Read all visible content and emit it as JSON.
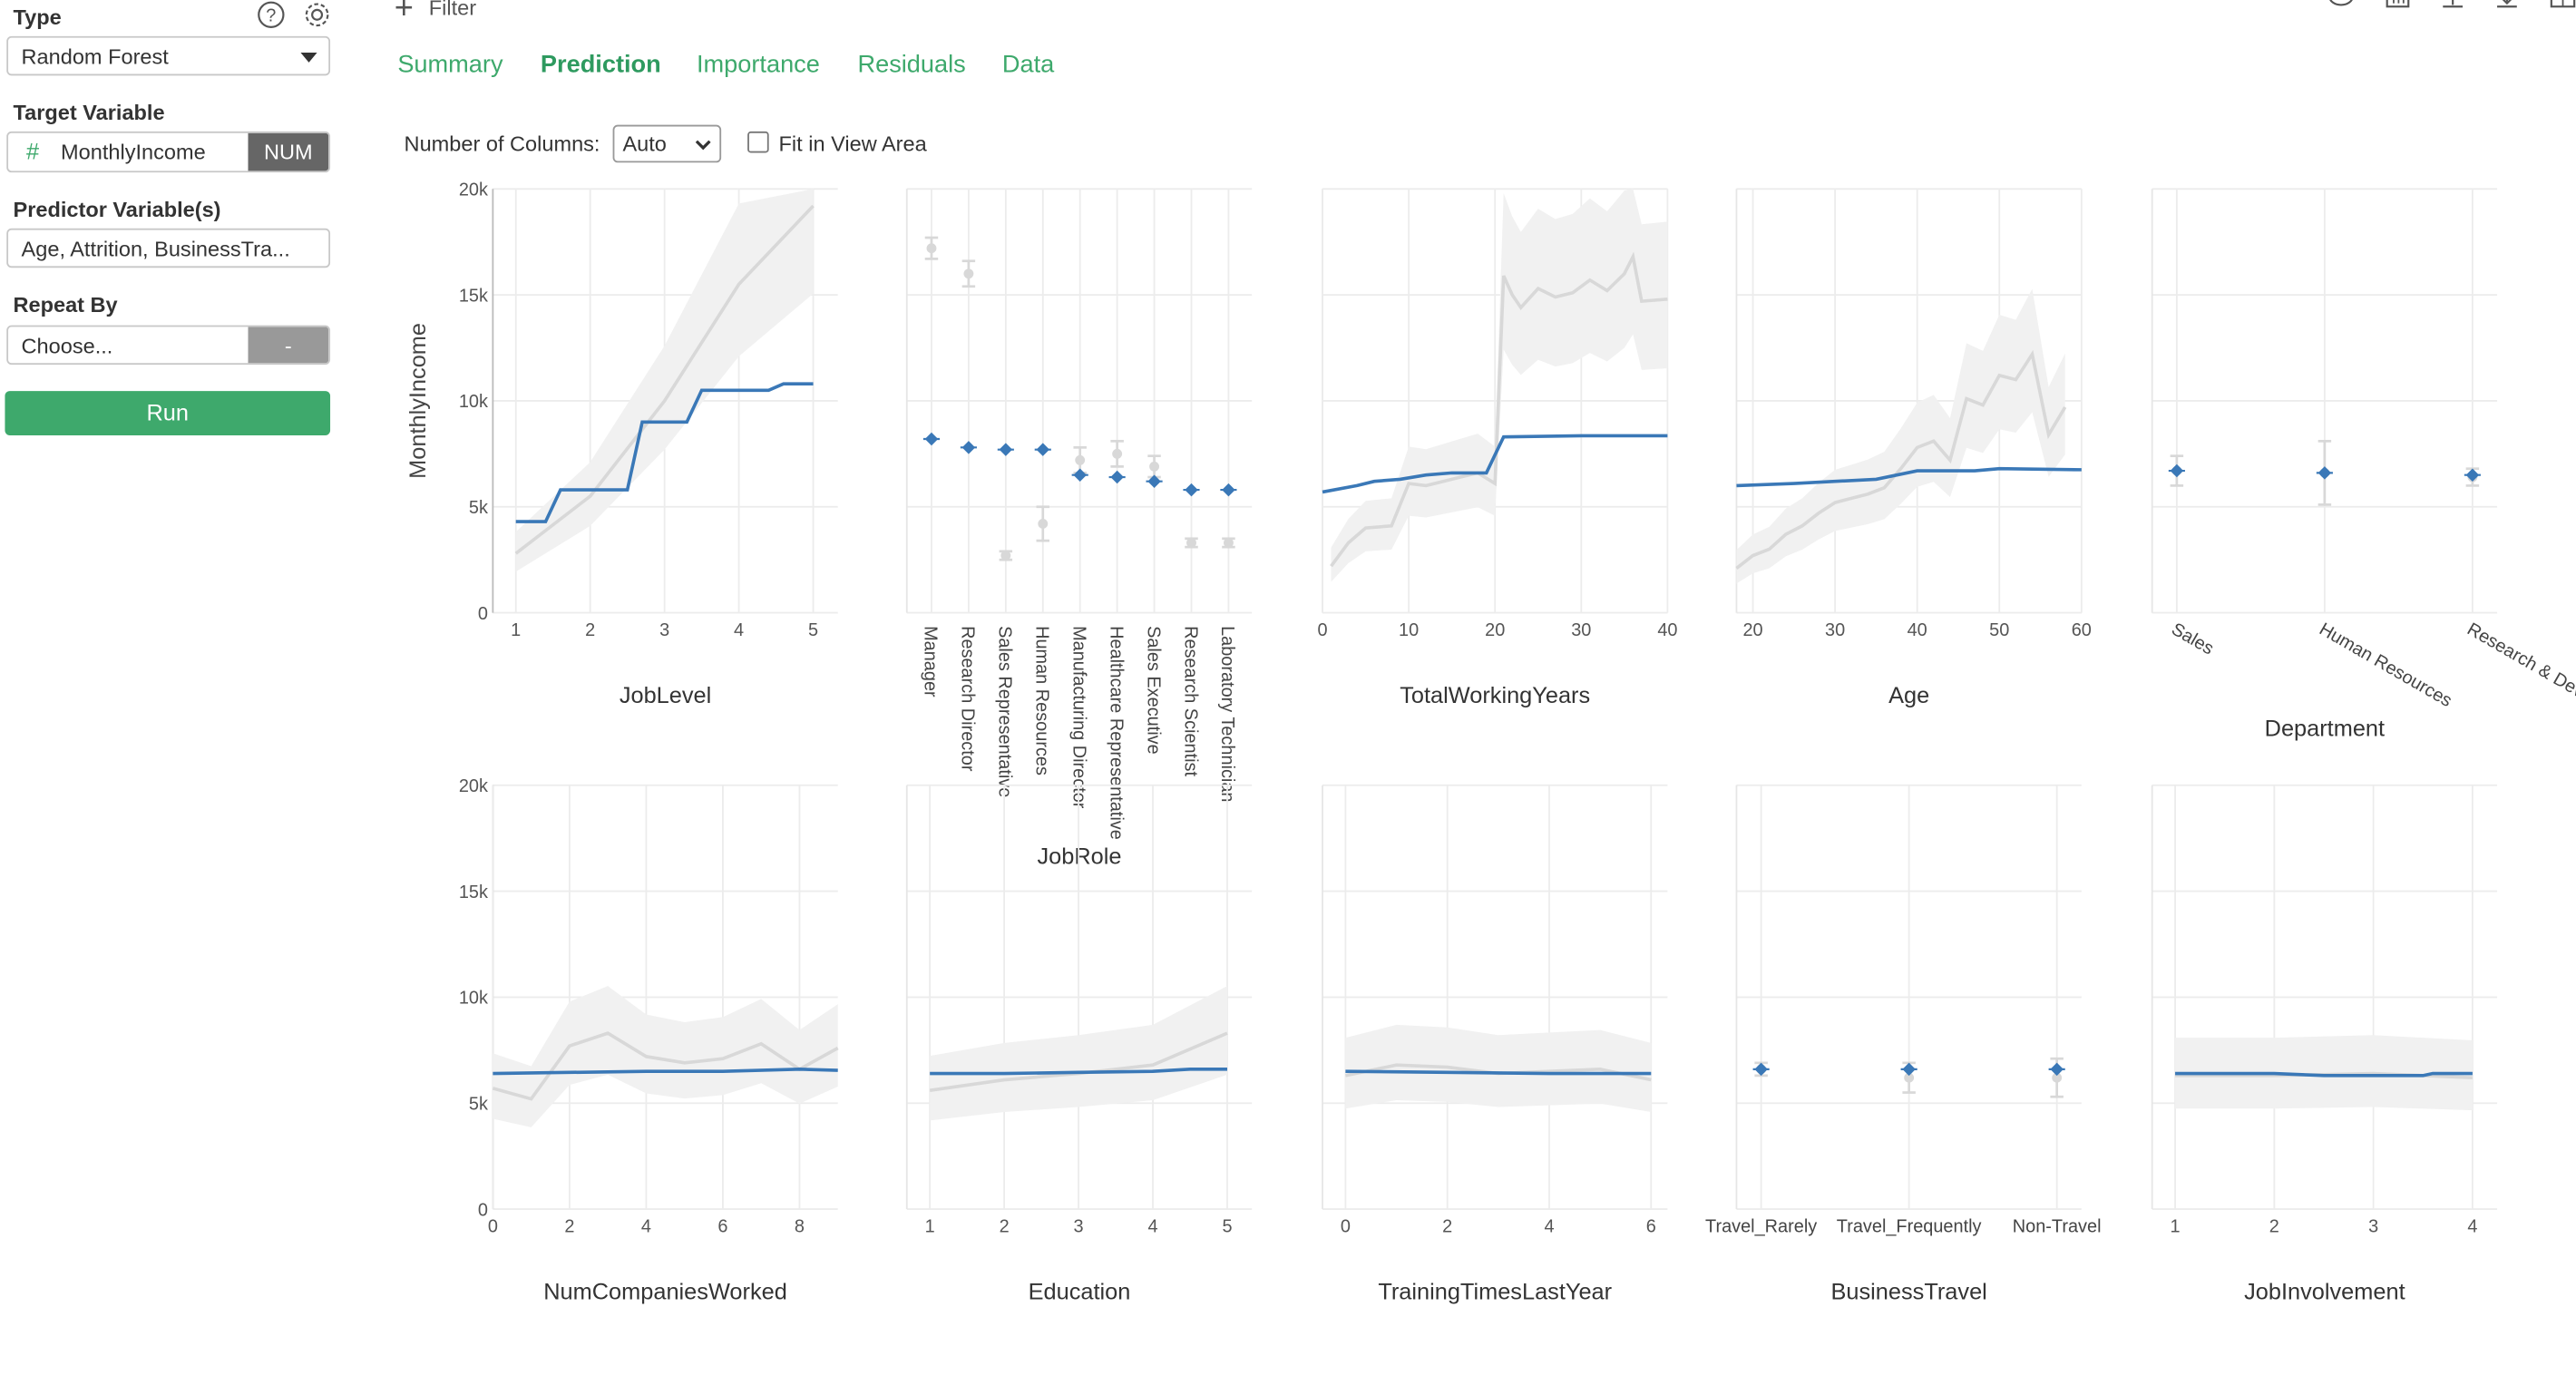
{
  "sidebar": {
    "type_label": "Type",
    "type_value": "Random Forest",
    "target_label": "Target Variable",
    "target_value": "MonthlyIncome",
    "target_type": "NUM",
    "predictor_label": "Predictor Variable(s)",
    "predictor_value": "Age, Attrition, BusinessTra...",
    "repeat_label": "Repeat By",
    "repeat_value": "Choose...",
    "repeat_btn": "-",
    "run_label": "Run"
  },
  "toolbar": {
    "filter_label": "Filter"
  },
  "tabs": [
    {
      "label": "Summary",
      "active": false
    },
    {
      "label": "Prediction",
      "active": true
    },
    {
      "label": "Importance",
      "active": false
    },
    {
      "label": "Residuals",
      "active": false
    },
    {
      "label": "Data",
      "active": false
    }
  ],
  "controls": {
    "columns_label": "Number of Columns:",
    "columns_value": "Auto",
    "fit_label": "Fit in View Area",
    "fit_checked": false
  },
  "colors": {
    "prediction": "#3a78b7",
    "actual": "#d8d8d8",
    "band": "#f1f1f1",
    "accent": "#3ea96c"
  },
  "chart_data": [
    {
      "type": "line",
      "xlabel": "JobLevel",
      "ylabel": "MonthlyIncome",
      "ylim": [
        0,
        20000
      ],
      "xlim": [
        1,
        5
      ],
      "x_ticks": [
        1,
        2,
        3,
        4,
        5
      ],
      "y_ticks": [
        "0",
        "5k",
        "10k",
        "15k",
        "20k"
      ],
      "series": [
        {
          "values": [
            [
              1,
              4300
            ],
            [
              1.4,
              4300
            ],
            [
              1.6,
              5800
            ],
            [
              2.5,
              5800
            ],
            [
              2.7,
              9000
            ],
            [
              3.3,
              9000
            ],
            [
              3.5,
              10500
            ],
            [
              4.4,
              10500
            ],
            [
              4.6,
              10800
            ],
            [
              5,
              10800
            ]
          ]
        },
        {
          "values": [
            [
              1,
              2800
            ],
            [
              2,
              5500
            ],
            [
              3,
              10000
            ],
            [
              4,
              15500
            ],
            [
              5,
              19200
            ]
          ]
        }
      ]
    },
    {
      "type": "scatter",
      "xlabel": "JobRole",
      "ylim": [
        0,
        20000
      ],
      "categories": [
        "Manager",
        "Research Director",
        "Sales Representative",
        "Human Resources",
        "Manufacturing Director",
        "Healthcare Representative",
        "Sales Executive",
        "Research Scientist",
        "Laboratory Technician"
      ],
      "prediction": [
        8200,
        7800,
        7700,
        7700,
        6500,
        6400,
        6200,
        5800,
        5800
      ],
      "actual": [
        17200,
        16000,
        2700,
        4200,
        7200,
        7500,
        6900,
        3300,
        3300
      ],
      "actual_err": [
        500,
        600,
        200,
        800,
        600,
        600,
        500,
        200,
        200
      ]
    },
    {
      "type": "line",
      "xlabel": "TotalWorkingYears",
      "ylim": [
        0,
        20000
      ],
      "xlim": [
        0,
        40
      ],
      "x_ticks": [
        0,
        10,
        20,
        30,
        40
      ],
      "series": [
        {
          "values": [
            [
              0,
              5700
            ],
            [
              4,
              6000
            ],
            [
              6,
              6200
            ],
            [
              9,
              6300
            ],
            [
              12,
              6500
            ],
            [
              15,
              6600
            ],
            [
              19,
              6600
            ],
            [
              21,
              8300
            ],
            [
              30,
              8350
            ],
            [
              40,
              8350
            ]
          ]
        },
        {
          "values": [
            [
              1,
              2200
            ],
            [
              3,
              3300
            ],
            [
              5,
              4000
            ],
            [
              8,
              4100
            ],
            [
              10,
              6100
            ],
            [
              12,
              6000
            ],
            [
              14,
              6200
            ],
            [
              16,
              6400
            ],
            [
              18,
              6600
            ],
            [
              20,
              6100
            ],
            [
              21,
              15900
            ],
            [
              22,
              15000
            ],
            [
              23,
              14400
            ],
            [
              25,
              15300
            ],
            [
              27,
              14900
            ],
            [
              29,
              15100
            ],
            [
              31,
              15700
            ],
            [
              33,
              15200
            ],
            [
              35,
              16000
            ],
            [
              36,
              16800
            ],
            [
              37,
              14700
            ],
            [
              40,
              14800
            ]
          ]
        }
      ]
    },
    {
      "type": "line",
      "xlabel": "Age",
      "ylim": [
        0,
        20000
      ],
      "xlim": [
        18,
        60
      ],
      "x_ticks": [
        20,
        30,
        40,
        50,
        60
      ],
      "series": [
        {
          "values": [
            [
              18,
              6000
            ],
            [
              25,
              6100
            ],
            [
              30,
              6200
            ],
            [
              35,
              6300
            ],
            [
              40,
              6700
            ],
            [
              47,
              6700
            ],
            [
              50,
              6800
            ],
            [
              60,
              6750
            ]
          ]
        },
        {
          "values": [
            [
              18,
              2100
            ],
            [
              20,
              2700
            ],
            [
              22,
              3000
            ],
            [
              24,
              3700
            ],
            [
              26,
              4100
            ],
            [
              28,
              4700
            ],
            [
              30,
              5200
            ],
            [
              32,
              5400
            ],
            [
              34,
              5600
            ],
            [
              36,
              5900
            ],
            [
              38,
              6800
            ],
            [
              40,
              7800
            ],
            [
              42,
              8100
            ],
            [
              44,
              7200
            ],
            [
              46,
              10100
            ],
            [
              48,
              9800
            ],
            [
              50,
              11200
            ],
            [
              52,
              11000
            ],
            [
              54,
              12200
            ],
            [
              56,
              8400
            ],
            [
              58,
              9700
            ]
          ]
        }
      ]
    },
    {
      "type": "scatter",
      "xlabel": "Department",
      "ylim": [
        0,
        20000
      ],
      "categories": [
        "Sales",
        "Human Resources",
        "Research & Development"
      ],
      "prediction": [
        6700,
        6600,
        6500
      ],
      "actual": [
        6700,
        6600,
        6400
      ],
      "actual_err": [
        700,
        1500,
        400
      ]
    },
    {
      "type": "line",
      "xlabel": "NumCompaniesWorked",
      "ylabel": "",
      "ylim": [
        0,
        20000
      ],
      "xlim": [
        0,
        9
      ],
      "x_ticks": [
        0,
        2,
        4,
        6,
        8
      ],
      "y_ticks": [
        "0",
        "5k",
        "10k",
        "15k",
        "20k"
      ],
      "series": [
        {
          "values": [
            [
              0,
              6400
            ],
            [
              2,
              6450
            ],
            [
              4,
              6500
            ],
            [
              6,
              6500
            ],
            [
              8,
              6600
            ],
            [
              9,
              6550
            ]
          ]
        },
        {
          "values": [
            [
              0,
              5700
            ],
            [
              1,
              5200
            ],
            [
              2,
              7700
            ],
            [
              3,
              8300
            ],
            [
              4,
              7200
            ],
            [
              5,
              6900
            ],
            [
              6,
              7100
            ],
            [
              7,
              7800
            ],
            [
              8,
              6600
            ],
            [
              9,
              7600
            ]
          ]
        }
      ]
    },
    {
      "type": "line",
      "xlabel": "Education",
      "ylim": [
        0,
        20000
      ],
      "xlim": [
        1,
        5
      ],
      "x_ticks": [
        1,
        2,
        3,
        4,
        5
      ],
      "series": [
        {
          "values": [
            [
              1,
              6400
            ],
            [
              2,
              6400
            ],
            [
              3,
              6450
            ],
            [
              4,
              6500
            ],
            [
              4.5,
              6600
            ],
            [
              5,
              6600
            ]
          ]
        },
        {
          "values": [
            [
              1,
              5600
            ],
            [
              2,
              6100
            ],
            [
              3,
              6400
            ],
            [
              4,
              6800
            ],
            [
              5,
              8300
            ]
          ]
        }
      ]
    },
    {
      "type": "line",
      "xlabel": "TrainingTimesLastYear",
      "ylim": [
        0,
        20000
      ],
      "xlim": [
        0,
        6
      ],
      "x_ticks": [
        0,
        2,
        4,
        6
      ],
      "series": [
        {
          "values": [
            [
              0,
              6500
            ],
            [
              2,
              6450
            ],
            [
              4,
              6400
            ],
            [
              6,
              6400
            ]
          ]
        },
        {
          "values": [
            [
              0,
              6300
            ],
            [
              1,
              6800
            ],
            [
              2,
              6700
            ],
            [
              3,
              6400
            ],
            [
              4,
              6500
            ],
            [
              5,
              6600
            ],
            [
              6,
              6100
            ]
          ]
        }
      ]
    },
    {
      "type": "scatter",
      "xlabel": "BusinessTravel",
      "ylim": [
        0,
        20000
      ],
      "categories": [
        "Travel_Rarely",
        "Travel_Frequently",
        "Non-Travel"
      ],
      "prediction": [
        6600,
        6600,
        6600
      ],
      "actual": [
        6600,
        6200,
        6200
      ],
      "actual_err": [
        300,
        700,
        900
      ]
    },
    {
      "type": "line",
      "xlabel": "JobInvolvement",
      "ylim": [
        0,
        20000
      ],
      "xlim": [
        1,
        4
      ],
      "x_ticks": [
        1,
        2,
        3,
        4
      ],
      "series": [
        {
          "values": [
            [
              1,
              6400
            ],
            [
              2,
              6400
            ],
            [
              2.5,
              6300
            ],
            [
              3.5,
              6300
            ],
            [
              3.6,
              6400
            ],
            [
              4,
              6400
            ]
          ]
        },
        {
          "values": [
            [
              1,
              6300
            ],
            [
              2,
              6300
            ],
            [
              3,
              6400
            ],
            [
              4,
              6200
            ]
          ]
        }
      ]
    }
  ]
}
